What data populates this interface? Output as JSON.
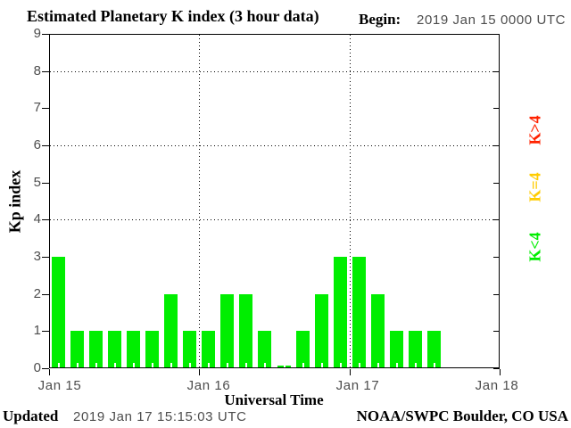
{
  "header": {
    "title": "Estimated Planetary K index (3 hour data)",
    "begin_label": "Begin:",
    "begin_value": "2019 Jan 15 0000 UTC"
  },
  "axes": {
    "ylabel": "Kp index",
    "xlabel": "Universal Time"
  },
  "legend": [
    {
      "label": "K>4",
      "color": "#ff2200"
    },
    {
      "label": "K=4",
      "color": "#ffcc00"
    },
    {
      "label": "K<4",
      "color": "#00ee00"
    }
  ],
  "footer": {
    "updated_label": "Updated",
    "updated_value": "2019 Jan 17 15:15:03 UTC",
    "credit": "NOAA/SWPC Boulder, CO USA"
  },
  "colors": {
    "bar_green": "#00ee00",
    "axis_black": "#000000",
    "background": "#ffffff"
  },
  "chart_data": {
    "type": "bar",
    "title": "Estimated Planetary K index (3 hour data)",
    "xlabel": "Universal Time",
    "ylabel": "Kp index",
    "ylim": [
      0,
      9
    ],
    "yticks": [
      0,
      1,
      2,
      3,
      4,
      5,
      6,
      7,
      8,
      9
    ],
    "dotted_hlines": [
      4,
      6,
      8
    ],
    "day_labels": [
      "Jan 15",
      "Jan 16",
      "Jan 17",
      "Jan 18"
    ],
    "bar_interval_hours": 3,
    "slots_per_day": 8,
    "total_slots": 24,
    "begin": "2019 Jan 15 0000 UTC",
    "values": [
      3,
      1,
      1,
      1,
      1,
      1,
      2,
      1,
      1,
      2,
      2,
      1,
      0,
      1,
      2,
      3,
      3,
      2,
      1,
      1,
      1
    ],
    "values_by_day": {
      "Jan 15": [
        3,
        1,
        1,
        1,
        1,
        1,
        2,
        1
      ],
      "Jan 16": [
        1,
        2,
        2,
        1,
        0,
        1,
        2,
        3
      ],
      "Jan 17": [
        3,
        2,
        1,
        1,
        1
      ]
    },
    "bar_color": "#00ee00",
    "grid": "dotted horizontal lines at Kp 4,6,8; dotted vertical lines at day boundaries",
    "legend_position": "right-outside"
  }
}
